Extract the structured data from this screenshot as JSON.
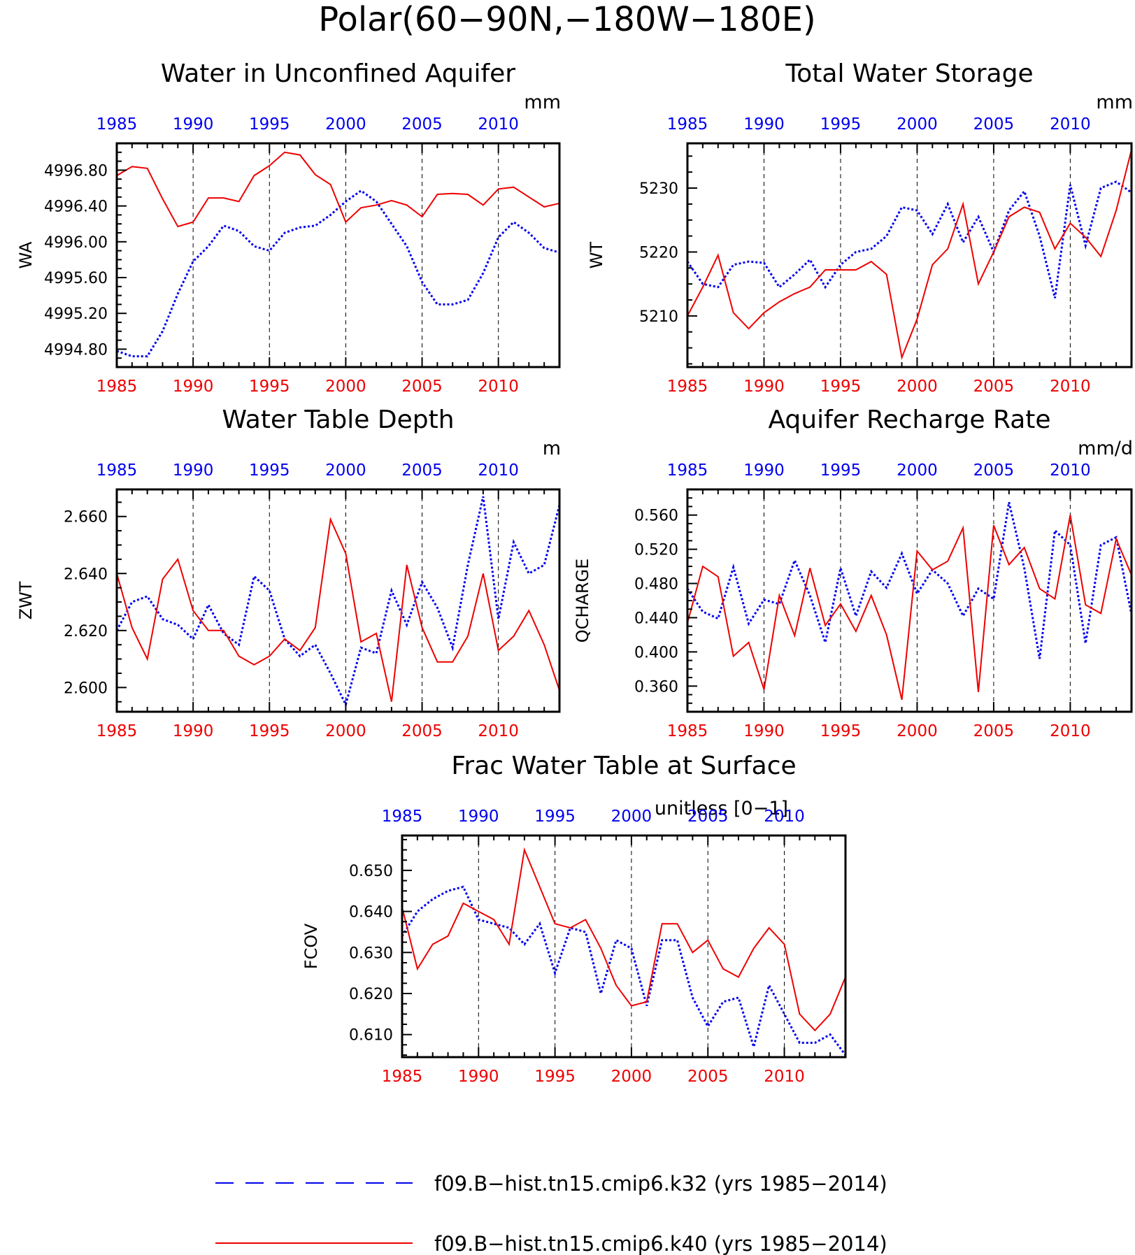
{
  "title": "Polar(60−90N,−180W−180E)",
  "colors": {
    "k32": "#0000ee",
    "k40": "#ee0000",
    "axis": "#000000"
  },
  "years": [
    1985,
    1986,
    1987,
    1988,
    1989,
    1990,
    1991,
    1992,
    1993,
    1994,
    1995,
    1996,
    1997,
    1998,
    1999,
    2000,
    2001,
    2002,
    2003,
    2004,
    2005,
    2006,
    2007,
    2008,
    2009,
    2010,
    2011,
    2012,
    2013,
    2014
  ],
  "legend": {
    "items": [
      {
        "name": "f09.B−hist.tn15.cmip6.k32 (yrs 1985−2014)",
        "color": "#0000ee",
        "style": "dashed"
      },
      {
        "name": "f09.B−hist.tn15.cmip6.k40 (yrs 1985−2014)",
        "color": "#ee0000",
        "style": "solid"
      }
    ]
  },
  "chart_data": [
    {
      "type": "line",
      "title": "Water in Unconfined Aquifer",
      "ylabel": "WA",
      "units": "mm",
      "xlim": [
        1985,
        2014
      ],
      "ylim": [
        4994.6,
        4997.1
      ],
      "yticks": [
        4994.8,
        4995.2,
        4995.6,
        4996.0,
        4996.4,
        4996.8
      ],
      "yticklabels": [
        "4994.80",
        "4995.20",
        "4995.60",
        "4996.00",
        "4996.40",
        "4996.80"
      ],
      "xticks": [
        1985,
        1990,
        1995,
        2000,
        2005,
        2010
      ],
      "series": [
        {
          "key": "k32",
          "values": [
            4994.78,
            4994.72,
            4994.72,
            4995.0,
            4995.42,
            4995.78,
            4995.95,
            4996.18,
            4996.12,
            4995.95,
            4995.9,
            4996.1,
            4996.16,
            4996.18,
            4996.3,
            4996.45,
            4996.57,
            4996.45,
            4996.2,
            4995.95,
            4995.55,
            4995.3,
            4995.3,
            4995.35,
            4995.65,
            4996.05,
            4996.22,
            4996.1,
            4995.93,
            4995.88
          ]
        },
        {
          "key": "k40",
          "values": [
            4996.74,
            4996.84,
            4996.82,
            4996.48,
            4996.17,
            4996.22,
            4996.49,
            4996.49,
            4996.45,
            4996.74,
            4996.85,
            4997.0,
            4996.97,
            4996.75,
            4996.64,
            4996.22,
            4996.38,
            4996.41,
            4996.46,
            4996.41,
            4996.28,
            4996.53,
            4996.54,
            4996.53,
            4996.41,
            4996.59,
            4996.61,
            4996.5,
            4996.39,
            4996.43
          ]
        }
      ]
    },
    {
      "type": "line",
      "title": "Total Water Storage",
      "ylabel": "WT",
      "units": "mm",
      "xlim": [
        1985,
        2014
      ],
      "ylim": [
        5202,
        5237
      ],
      "yticks": [
        5210,
        5220,
        5230
      ],
      "yticklabels": [
        "5210",
        "5220",
        "5230"
      ],
      "xticks": [
        1985,
        1990,
        1995,
        2000,
        2005,
        2010
      ],
      "series": [
        {
          "key": "k32",
          "values": [
            5218.5,
            5215,
            5214.5,
            5218,
            5218.5,
            5218.3,
            5214.5,
            5216.5,
            5218.8,
            5214.5,
            5218,
            5220,
            5220.5,
            5222.5,
            5227,
            5226.5,
            5222.8,
            5227.5,
            5221.5,
            5225.5,
            5220,
            5226.5,
            5229.5,
            5222.5,
            5212.8,
            5230.5,
            5221,
            5230,
            5231,
            5229.3
          ]
        },
        {
          "key": "k40",
          "values": [
            5210,
            5214.5,
            5219.5,
            5210.5,
            5208,
            5210.5,
            5212.2,
            5213.5,
            5214.5,
            5217.2,
            5217.2,
            5217.2,
            5218.5,
            5216.5,
            5203.5,
            5209.5,
            5218,
            5220.5,
            5227.5,
            5215,
            5220,
            5225.5,
            5227,
            5226.2,
            5220.5,
            5224.5,
            5222.3,
            5219.3,
            5226.5,
            5236
          ]
        }
      ]
    },
    {
      "type": "line",
      "title": "Water Table Depth",
      "ylabel": "ZWT",
      "units": "m",
      "xlim": [
        1985,
        2014
      ],
      "ylim": [
        2.5915,
        2.6695
      ],
      "yticks": [
        2.6,
        2.62,
        2.64,
        2.66
      ],
      "yticklabels": [
        "2.600",
        "2.620",
        "2.640",
        "2.660"
      ],
      "xticks": [
        1985,
        1990,
        1995,
        2000,
        2005,
        2010
      ],
      "series": [
        {
          "key": "k32",
          "values": [
            2.62,
            2.63,
            2.632,
            2.624,
            2.622,
            2.617,
            2.629,
            2.619,
            2.615,
            2.639,
            2.634,
            2.617,
            2.611,
            2.615,
            2.605,
            2.594,
            2.614,
            2.612,
            2.634,
            2.622,
            2.637,
            2.628,
            2.614,
            2.643,
            2.667,
            2.624,
            2.651,
            2.64,
            2.643,
            2.664
          ]
        },
        {
          "key": "k40",
          "values": [
            2.64,
            2.621,
            2.61,
            2.638,
            2.645,
            2.627,
            2.62,
            2.62,
            2.611,
            2.608,
            2.611,
            2.617,
            2.613,
            2.621,
            2.659,
            2.647,
            2.616,
            2.619,
            2.595,
            2.643,
            2.621,
            2.609,
            2.609,
            2.618,
            2.64,
            2.613,
            2.618,
            2.627,
            2.615,
            2.599
          ]
        }
      ]
    },
    {
      "type": "line",
      "title": "Aquifer Recharge Rate",
      "ylabel": "QCHARGE",
      "units": "mm/d",
      "xlim": [
        1985,
        2014
      ],
      "ylim": [
        0.33,
        0.59
      ],
      "yticks": [
        0.36,
        0.4,
        0.44,
        0.48,
        0.52,
        0.56
      ],
      "yticklabels": [
        "0.360",
        "0.400",
        "0.440",
        "0.480",
        "0.520",
        "0.560"
      ],
      "xticks": [
        1985,
        1990,
        1995,
        2000,
        2005,
        2010
      ],
      "series": [
        {
          "key": "k32",
          "values": [
            0.474,
            0.447,
            0.439,
            0.499,
            0.433,
            0.461,
            0.456,
            0.507,
            0.466,
            0.411,
            0.498,
            0.442,
            0.494,
            0.475,
            0.515,
            0.468,
            0.496,
            0.48,
            0.442,
            0.474,
            0.462,
            0.575,
            0.498,
            0.392,
            0.542,
            0.525,
            0.41,
            0.525,
            0.534,
            0.444
          ]
        },
        {
          "key": "k40",
          "values": [
            0.434,
            0.5,
            0.488,
            0.395,
            0.411,
            0.356,
            0.466,
            0.419,
            0.498,
            0.431,
            0.456,
            0.424,
            0.466,
            0.42,
            0.344,
            0.518,
            0.496,
            0.506,
            0.545,
            0.353,
            0.548,
            0.502,
            0.522,
            0.474,
            0.462,
            0.56,
            0.455,
            0.445,
            0.532,
            0.49
          ]
        }
      ]
    },
    {
      "type": "line",
      "title": "Frac Water Table at Surface",
      "ylabel": "FCOV",
      "units": "unitless [0−1]",
      "xlim": [
        1985,
        2014
      ],
      "ylim": [
        0.6045,
        0.6585
      ],
      "yticks": [
        0.61,
        0.62,
        0.63,
        0.64,
        0.65
      ],
      "yticklabels": [
        "0.610",
        "0.620",
        "0.630",
        "0.640",
        "0.650"
      ],
      "xticks": [
        1985,
        1990,
        1995,
        2000,
        2005,
        2010
      ],
      "series": [
        {
          "key": "k32",
          "values": [
            0.634,
            0.64,
            0.643,
            0.645,
            0.646,
            0.638,
            0.637,
            0.636,
            0.632,
            0.637,
            0.625,
            0.636,
            0.635,
            0.62,
            0.633,
            0.631,
            0.617,
            0.633,
            0.633,
            0.619,
            0.612,
            0.618,
            0.619,
            0.607,
            0.622,
            0.615,
            0.608,
            0.608,
            0.61,
            0.605
          ]
        },
        {
          "key": "k40",
          "values": [
            0.641,
            0.626,
            0.632,
            0.634,
            0.642,
            0.64,
            0.638,
            0.632,
            0.655,
            0.646,
            0.637,
            0.636,
            0.638,
            0.631,
            0.622,
            0.617,
            0.618,
            0.637,
            0.637,
            0.63,
            0.633,
            0.626,
            0.624,
            0.631,
            0.636,
            0.632,
            0.615,
            0.611,
            0.615,
            0.624
          ]
        }
      ]
    }
  ]
}
